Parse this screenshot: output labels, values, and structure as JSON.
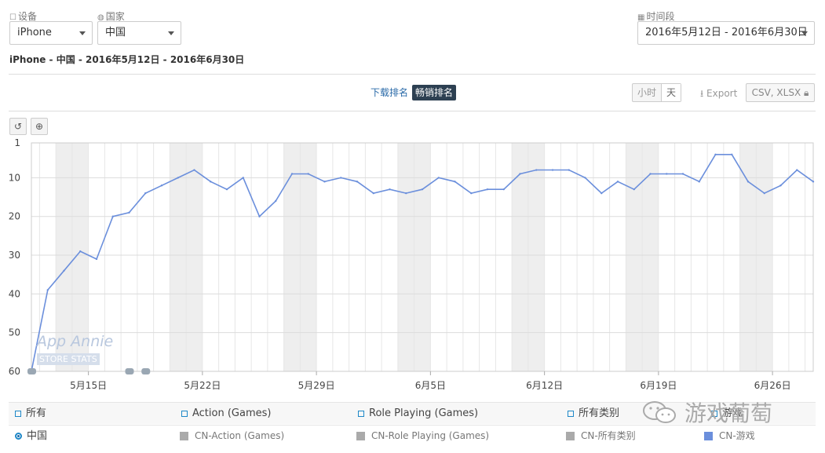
{
  "filters": {
    "device_label": "设备",
    "device_value": "iPhone",
    "country_label": "国家",
    "country_value": "中国",
    "period_label": "时间段",
    "period_value": "2016年5月12日 - 2016年6月30日"
  },
  "subtitle": "iPhone - 中国 - 2016年5月12日 - 2016年6月30日",
  "rank_tabs": [
    "下载排名",
    "畅销排名"
  ],
  "granularity": [
    "小时",
    "天"
  ],
  "export_label": "Export",
  "export_formats": "CSV, XLSX",
  "watermark_brand": "App Annie",
  "watermark_sub": "STORE STATS",
  "legend_row1": [
    "所有",
    "Action (Games)",
    "Role Playing (Games)",
    "所有类别",
    "游戏"
  ],
  "legend_row2": [
    "中国",
    "CN-Action (Games)",
    "CN-Role Playing (Games)",
    "CN-所有类别",
    "CN-游戏"
  ],
  "wechat_watermark": "游戏葡萄",
  "colors": {
    "series": "#6b8fdc",
    "weekend_band": "#eeeeee",
    "legend_grey": "#999999"
  },
  "chart_data": {
    "type": "line",
    "y_inverted": true,
    "ylim": [
      1,
      60
    ],
    "yticks": [
      1,
      10,
      20,
      30,
      40,
      50,
      60
    ],
    "x_tick_labels": [
      "5月15日",
      "5月22日",
      "5月29日",
      "6月5日",
      "6月12日",
      "6月19日",
      "6月26日"
    ],
    "x_start": "2016-05-12",
    "series": [
      {
        "name": "CN-游戏",
        "values": [
          60,
          39,
          34,
          29,
          31,
          20,
          19,
          14,
          12,
          10,
          8,
          11,
          13,
          10,
          20,
          16,
          9,
          9,
          11,
          10,
          11,
          14,
          13,
          14,
          13,
          10,
          11,
          14,
          13,
          13,
          9,
          8,
          8,
          8,
          10,
          14,
          11,
          13,
          9,
          9,
          9,
          11,
          4,
          4,
          11,
          14,
          12,
          8,
          11
        ]
      }
    ]
  }
}
